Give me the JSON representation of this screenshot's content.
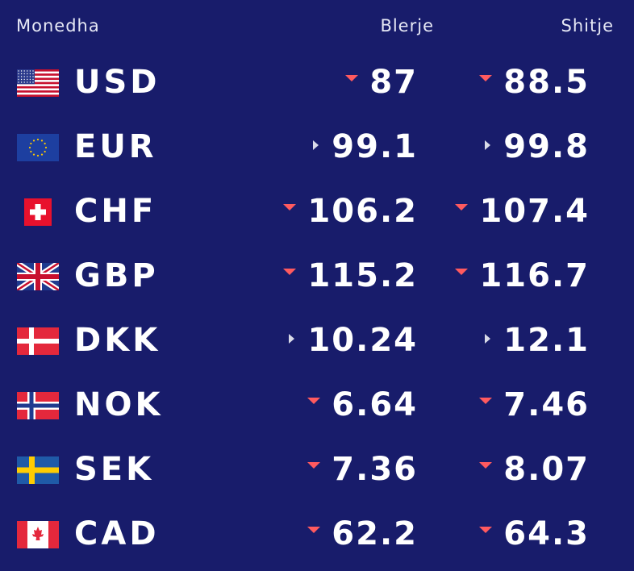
{
  "header": {
    "currency": "Monedha",
    "buy": "Blerje",
    "sell": "Shitje"
  },
  "colors": {
    "background": "#181c6b",
    "down": "#ff5a5f",
    "flat": "#d9dbe8"
  },
  "rates": [
    {
      "code": "USD",
      "flag": "us-flag-icon",
      "buy": "87",
      "buy_trend": "down",
      "sell": "88.5",
      "sell_trend": "down"
    },
    {
      "code": "EUR",
      "flag": "eu-flag-icon",
      "buy": "99.1",
      "buy_trend": "flat",
      "sell": "99.8",
      "sell_trend": "flat"
    },
    {
      "code": "CHF",
      "flag": "ch-flag-icon",
      "buy": "106.2",
      "buy_trend": "down",
      "sell": "107.4",
      "sell_trend": "down"
    },
    {
      "code": "GBP",
      "flag": "gb-flag-icon",
      "buy": "115.2",
      "buy_trend": "down",
      "sell": "116.7",
      "sell_trend": "down"
    },
    {
      "code": "DKK",
      "flag": "dk-flag-icon",
      "buy": "10.24",
      "buy_trend": "flat",
      "sell": "12.1",
      "sell_trend": "flat"
    },
    {
      "code": "NOK",
      "flag": "no-flag-icon",
      "buy": "6.64",
      "buy_trend": "down",
      "sell": "7.46",
      "sell_trend": "down"
    },
    {
      "code": "SEK",
      "flag": "se-flag-icon",
      "buy": "7.36",
      "buy_trend": "down",
      "sell": "8.07",
      "sell_trend": "down"
    },
    {
      "code": "CAD",
      "flag": "ca-flag-icon",
      "buy": "62.2",
      "buy_trend": "down",
      "sell": "64.3",
      "sell_trend": "down"
    }
  ]
}
